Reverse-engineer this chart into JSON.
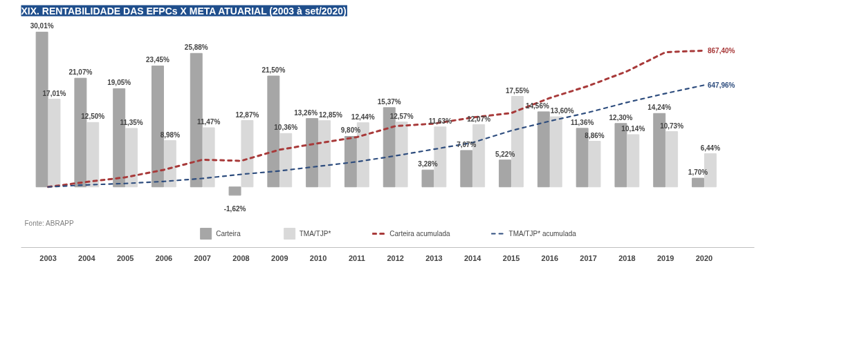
{
  "chart_data": {
    "type": "bar",
    "title": "XIX. RENTABILIDADE DAS EFPCs X META ATUARIAL (2003 à set/2020)",
    "categories": [
      "2003",
      "2004",
      "2005",
      "2006",
      "2007",
      "2008",
      "2009",
      "2010",
      "2011",
      "2012",
      "2013",
      "2014",
      "2015",
      "2016",
      "2017",
      "2018",
      "2019",
      "2020"
    ],
    "tick_labels": "x",
    "legend": "bottom",
    "series": [
      {
        "name": "Carteira",
        "color": "#a6a6a6",
        "values": [
          30.01,
          21.07,
          19.05,
          23.45,
          25.88,
          -1.62,
          21.5,
          13.26,
          9.8,
          15.37,
          3.28,
          7.07,
          5.22,
          14.56,
          11.36,
          12.3,
          14.24,
          1.7
        ],
        "value_labels": [
          "30,01%",
          "21,07%",
          "19,05%",
          "23,45%",
          "25,88%",
          "-1,62%",
          "21,50%",
          "13,26%",
          "9,80%",
          "15,37%",
          "3,28%",
          "7,07%",
          "5,22%",
          "14,56%",
          "11,36%",
          "12,30%",
          "14,24%",
          "1,70%"
        ]
      },
      {
        "name": "TMA/TJP*",
        "color": "#d9d9d9",
        "values": [
          17.01,
          12.5,
          11.35,
          8.98,
          11.47,
          12.87,
          10.36,
          12.85,
          12.44,
          12.57,
          11.63,
          12.07,
          17.55,
          13.6,
          8.86,
          10.14,
          10.73,
          6.44
        ],
        "value_labels": [
          "17,01%",
          "12,50%",
          "11,35%",
          "8,98%",
          "11,47%",
          "12,87%",
          "10,36%",
          "12,85%",
          "12,44%",
          "12,57%",
          "11,63%",
          "12,07%",
          "17,55%",
          "13,60%",
          "8,86%",
          "10,14%",
          "10,73%",
          "6,44%"
        ]
      },
      {
        "name": "Carteira acumulada",
        "type": "line",
        "axis": "y2",
        "color": "#a83a3a",
        "line_style": "dashed",
        "values": [
          0,
          32,
          61,
          109,
          173,
          166,
          237,
          278,
          317,
          387,
          403,
          442,
          470,
          566,
          643,
          736,
          858,
          867.4
        ],
        "value_labels": [
          null,
          null,
          null,
          null,
          null,
          null,
          null,
          null,
          null,
          null,
          null,
          null,
          null,
          null,
          null,
          null,
          null,
          "867,40%"
        ]
      },
      {
        "name": "TMA/TJP* acumulada",
        "type": "line",
        "axis": "y2",
        "color": "#2e4d7e",
        "line_style": "dashed",
        "values": [
          0,
          13,
          22,
          35,
          54,
          80,
          102,
          131,
          160,
          198,
          240,
          282,
          358,
          419,
          474,
          538,
          595,
          647.96
        ],
        "value_labels": [
          null,
          null,
          null,
          null,
          null,
          null,
          null,
          null,
          null,
          null,
          null,
          null,
          null,
          null,
          null,
          null,
          null,
          "647,96%"
        ]
      }
    ],
    "annotations": [
      "Fonte: ABRAPP"
    ]
  }
}
